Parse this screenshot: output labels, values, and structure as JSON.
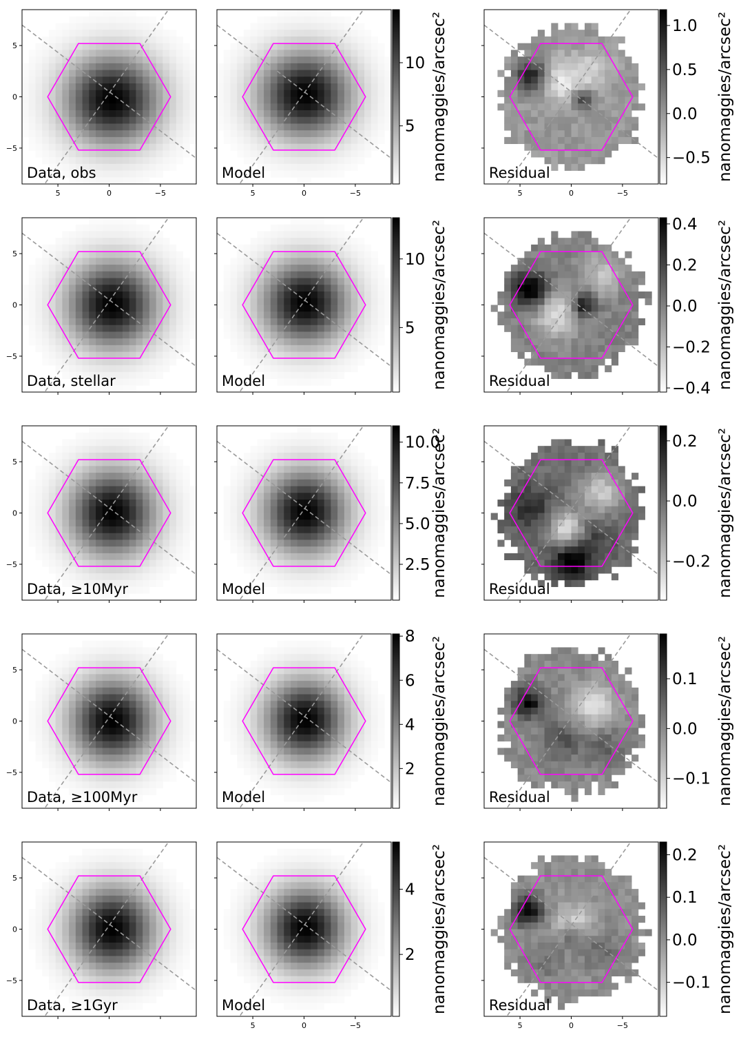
{
  "figure": {
    "grid_rows": 5,
    "grid_cols": 3,
    "colorbar_label": "nanomaggies/arcsec²",
    "panel_titles": [
      "Data, obs",
      "Model",
      "Residual",
      "Data, stellar",
      "Model",
      "Residual",
      "Data, ≥10Myr",
      "Model",
      "Residual",
      "Data, ≥100Myr",
      "Model",
      "Residual",
      "Data, ≥1Gyr",
      "Model",
      "Residual"
    ],
    "colors": {
      "hexagon": "#ff00ff",
      "guide_lines": "#9a9a9a",
      "colormap": "gray_r",
      "background": "#ffffff"
    }
  },
  "chart_data": [
    {
      "type": "heatmap",
      "row": 0,
      "col": 0,
      "panel": "Data, obs",
      "xlabel": "",
      "ylabel": "",
      "xlim": [
        8.5,
        -8.5
      ],
      "ylim": [
        -8.5,
        8.5
      ],
      "x_ticks": [
        5,
        0,
        -5
      ],
      "y_ticks": [
        5,
        0,
        -5
      ],
      "x_tick_labels": [
        "5",
        "0",
        "−5"
      ],
      "y_tick_labels": [
        "5",
        "0",
        "−5"
      ],
      "show_xticklabels": true,
      "show_yticklabels": true,
      "overlays": [
        "hexagonal IFU footprint",
        "two dashed diagonal guide lines"
      ],
      "image": {
        "peak": [
          -0.3,
          -0.3
        ],
        "sigma": [
          3.2,
          3.0
        ],
        "amp": 14.5,
        "residual": false,
        "clip_radius": null
      }
    },
    {
      "type": "heatmap",
      "row": 0,
      "col": 1,
      "panel": "Model",
      "xlabel": "",
      "ylabel": "",
      "xlim": [
        8.5,
        -8.5
      ],
      "ylim": [
        -8.5,
        8.5
      ],
      "x_ticks": [
        5,
        0,
        -5
      ],
      "y_ticks": [
        5,
        0,
        -5
      ],
      "x_tick_labels": [
        "5",
        "0",
        "−5"
      ],
      "y_tick_labels": [
        "5",
        "0",
        "−5"
      ],
      "show_xticklabels": true,
      "show_yticklabels": false,
      "overlays": [
        "hexagonal IFU footprint",
        "two dashed diagonal guide lines"
      ],
      "image": {
        "peak": [
          -0.1,
          0.2
        ],
        "sigma": [
          3.1,
          2.9
        ],
        "amp": 13.5,
        "residual": false,
        "clip_radius": null
      },
      "colorbar": {
        "ticks": [
          5,
          10
        ],
        "tick_labels": [
          "5",
          "10"
        ],
        "range": [
          0.4,
          14.2
        ],
        "label": "nanomaggies/arcsec²"
      }
    },
    {
      "type": "heatmap",
      "row": 0,
      "col": 2,
      "panel": "Residual",
      "xlabel": "",
      "ylabel": "",
      "xlim": [
        8.5,
        -8.5
      ],
      "ylim": [
        -8.5,
        8.5
      ],
      "x_ticks": [
        5,
        0,
        -5
      ],
      "y_ticks": [
        5,
        0,
        -5
      ],
      "x_tick_labels": [
        "5",
        "0",
        "−5"
      ],
      "y_tick_labels": [
        "5",
        "0",
        "−5"
      ],
      "show_xticklabels": true,
      "show_yticklabels": false,
      "overlays": [
        "hexagonal IFU footprint",
        "two dashed diagonal guide lines"
      ],
      "image": {
        "residual": true,
        "seed": 11,
        "vmin": -0.8,
        "vmax": 1.18,
        "clip_radius": 7.0,
        "blobs": [
          [
            3.8,
            2.0,
            1.0,
            1.1
          ],
          [
            -1.1,
            -0.2,
            0.8,
            0.7
          ],
          [
            1.0,
            1.5,
            -0.6,
            1.5
          ],
          [
            -2.0,
            2.5,
            -0.4,
            1.4
          ]
        ]
      },
      "colorbar": {
        "ticks": [
          -0.5,
          0.0,
          0.5,
          1.0
        ],
        "tick_labels": [
          "−0.5",
          "0.0",
          "0.5",
          "1.0"
        ],
        "range": [
          -0.8,
          1.18
        ],
        "label": "nanomaggies/arcsec²"
      }
    },
    {
      "type": "heatmap",
      "row": 1,
      "col": 0,
      "panel": "Data, stellar",
      "xlabel": "",
      "ylabel": "",
      "xlim": [
        8.5,
        -8.5
      ],
      "ylim": [
        -8.5,
        8.5
      ],
      "x_ticks": [
        5,
        0,
        -5
      ],
      "y_ticks": [
        5,
        0,
        -5
      ],
      "x_tick_labels": [
        "5",
        "0",
        "−5"
      ],
      "y_tick_labels": [
        "5",
        "0",
        "−5"
      ],
      "show_xticklabels": false,
      "show_yticklabels": true,
      "overlays": [
        "hexagonal IFU footprint",
        "two dashed diagonal guide lines"
      ],
      "image": {
        "peak": [
          -0.3,
          0.0
        ],
        "sigma": [
          3.0,
          2.9
        ],
        "amp": 13.0,
        "residual": false,
        "clip_radius": null
      }
    },
    {
      "type": "heatmap",
      "row": 1,
      "col": 1,
      "panel": "Model",
      "xlabel": "",
      "ylabel": "",
      "xlim": [
        8.5,
        -8.5
      ],
      "ylim": [
        -8.5,
        8.5
      ],
      "x_ticks": [
        5,
        0,
        -5
      ],
      "y_ticks": [
        5,
        0,
        -5
      ],
      "x_tick_labels": [
        "5",
        "0",
        "−5"
      ],
      "y_tick_labels": [
        "5",
        "0",
        "−5"
      ],
      "show_xticklabels": false,
      "show_yticklabels": false,
      "overlays": [
        "hexagonal IFU footprint",
        "two dashed diagonal guide lines"
      ],
      "image": {
        "peak": [
          -0.1,
          0.2
        ],
        "sigma": [
          2.9,
          2.8
        ],
        "amp": 12.8,
        "residual": false,
        "clip_radius": null
      },
      "colorbar": {
        "ticks": [
          5,
          10
        ],
        "tick_labels": [
          "5",
          "10"
        ],
        "range": [
          0.3,
          13.0
        ],
        "label": "nanomaggies/arcsec²"
      }
    },
    {
      "type": "heatmap",
      "row": 1,
      "col": 2,
      "panel": "Residual",
      "xlabel": "",
      "ylabel": "",
      "xlim": [
        8.5,
        -8.5
      ],
      "ylim": [
        -8.5,
        8.5
      ],
      "x_ticks": [
        5,
        0,
        -5
      ],
      "y_ticks": [
        5,
        0,
        -5
      ],
      "x_tick_labels": [
        "5",
        "0",
        "−5"
      ],
      "y_tick_labels": [
        "5",
        "0",
        "−5"
      ],
      "show_xticklabels": false,
      "show_yticklabels": false,
      "overlays": [
        "hexagonal IFU footprint",
        "two dashed diagonal guide lines"
      ],
      "image": {
        "residual": true,
        "seed": 23,
        "vmin": -0.42,
        "vmax": 0.43,
        "clip_radius": 7.0,
        "blobs": [
          [
            4.0,
            1.5,
            0.5,
            1.2
          ],
          [
            -1.2,
            0.0,
            0.4,
            0.8
          ],
          [
            1.5,
            -1.0,
            -0.3,
            1.5
          ],
          [
            -3.0,
            3.0,
            -0.2,
            1.5
          ]
        ]
      },
      "colorbar": {
        "ticks": [
          -0.4,
          -0.2,
          0.0,
          0.2,
          0.4
        ],
        "tick_labels": [
          "−0.4",
          "−0.2",
          "0.0",
          "0.2",
          "0.4"
        ],
        "range": [
          -0.42,
          0.43
        ],
        "label": "nanomaggies/arcsec²"
      }
    },
    {
      "type": "heatmap",
      "row": 2,
      "col": 0,
      "panel": "Data, ≥10Myr",
      "xlabel": "",
      "ylabel": "",
      "xlim": [
        8.5,
        -8.5
      ],
      "ylim": [
        -8.5,
        8.5
      ],
      "x_ticks": [
        5,
        0,
        -5
      ],
      "y_ticks": [
        5,
        0,
        -5
      ],
      "x_tick_labels": [
        "5",
        "0",
        "−5"
      ],
      "y_tick_labels": [
        "5",
        "0",
        "−5"
      ],
      "show_xticklabels": false,
      "show_yticklabels": true,
      "overlays": [
        "hexagonal IFU footprint",
        "two dashed diagonal guide lines"
      ],
      "image": {
        "peak": [
          -0.3,
          0.0
        ],
        "sigma": [
          2.9,
          2.9
        ],
        "amp": 11.0,
        "residual": false,
        "clip_radius": null
      }
    },
    {
      "type": "heatmap",
      "row": 2,
      "col": 1,
      "panel": "Model",
      "xlabel": "",
      "ylabel": "",
      "xlim": [
        8.5,
        -8.5
      ],
      "ylim": [
        -8.5,
        8.5
      ],
      "x_ticks": [
        5,
        0,
        -5
      ],
      "y_ticks": [
        5,
        0,
        -5
      ],
      "x_tick_labels": [
        "5",
        "0",
        "−5"
      ],
      "y_tick_labels": [
        "5",
        "0",
        "−5"
      ],
      "show_xticklabels": false,
      "show_yticklabels": false,
      "overlays": [
        "hexagonal IFU footprint",
        "two dashed diagonal guide lines"
      ],
      "image": {
        "peak": [
          -0.1,
          0.1
        ],
        "sigma": [
          2.8,
          2.8
        ],
        "amp": 10.8,
        "residual": false,
        "clip_radius": null
      },
      "colorbar": {
        "ticks": [
          2.5,
          5.0,
          7.5,
          10.0
        ],
        "tick_labels": [
          "2.5",
          "5.0",
          "7.5",
          "10.0"
        ],
        "range": [
          0.3,
          11.0
        ],
        "label": "nanomaggies/arcsec²"
      }
    },
    {
      "type": "heatmap",
      "row": 2,
      "col": 2,
      "panel": "Residual",
      "xlabel": "",
      "ylabel": "",
      "xlim": [
        8.5,
        -8.5
      ],
      "ylim": [
        -8.5,
        8.5
      ],
      "x_ticks": [
        5,
        0,
        -5
      ],
      "y_ticks": [
        5,
        0,
        -5
      ],
      "x_tick_labels": [
        "5",
        "0",
        "−5"
      ],
      "y_tick_labels": [
        "5",
        "0",
        "−5"
      ],
      "show_xticklabels": false,
      "show_yticklabels": false,
      "overlays": [
        "hexagonal IFU footprint",
        "two dashed diagonal guide lines"
      ],
      "image": {
        "residual": true,
        "seed": 37,
        "vmin": -0.33,
        "vmax": 0.25,
        "clip_radius": 7.0,
        "blobs": [
          [
            0.0,
            -4.8,
            0.3,
            1.2
          ],
          [
            4.0,
            0.5,
            0.15,
            1.5
          ],
          [
            -3.0,
            2.0,
            -0.2,
            1.5
          ],
          [
            0.5,
            -1.5,
            -0.25,
            1.2
          ],
          [
            -2.5,
            -2.5,
            0.1,
            1.3
          ]
        ]
      },
      "colorbar": {
        "ticks": [
          -0.2,
          0.0,
          0.2
        ],
        "tick_labels": [
          "−0.2",
          "0.0",
          "0.2"
        ],
        "range": [
          -0.33,
          0.25
        ],
        "label": "nanomaggies/arcsec²"
      }
    },
    {
      "type": "heatmap",
      "row": 3,
      "col": 0,
      "panel": "Data, ≥100Myr",
      "xlabel": "",
      "ylabel": "",
      "xlim": [
        8.5,
        -8.5
      ],
      "ylim": [
        -8.5,
        8.5
      ],
      "x_ticks": [
        5,
        0,
        -5
      ],
      "y_ticks": [
        5,
        0,
        -5
      ],
      "x_tick_labels": [
        "5",
        "0",
        "−5"
      ],
      "y_tick_labels": [
        "5",
        "0",
        "−5"
      ],
      "show_xticklabels": false,
      "show_yticklabels": true,
      "overlays": [
        "hexagonal IFU footprint",
        "two dashed diagonal guide lines"
      ],
      "image": {
        "peak": [
          -0.3,
          0.0
        ],
        "sigma": [
          2.8,
          2.8
        ],
        "amp": 8.1,
        "residual": false,
        "clip_radius": null
      }
    },
    {
      "type": "heatmap",
      "row": 3,
      "col": 1,
      "panel": "Model",
      "xlabel": "",
      "ylabel": "",
      "xlim": [
        8.5,
        -8.5
      ],
      "ylim": [
        -8.5,
        8.5
      ],
      "x_ticks": [
        5,
        0,
        -5
      ],
      "y_ticks": [
        5,
        0,
        -5
      ],
      "x_tick_labels": [
        "5",
        "0",
        "−5"
      ],
      "y_tick_labels": [
        "5",
        "0",
        "−5"
      ],
      "show_xticklabels": false,
      "show_yticklabels": false,
      "overlays": [
        "hexagonal IFU footprint",
        "two dashed diagonal guide lines"
      ],
      "image": {
        "peak": [
          -0.1,
          0.1
        ],
        "sigma": [
          2.7,
          2.7
        ],
        "amp": 8.0,
        "residual": false,
        "clip_radius": null
      },
      "colorbar": {
        "ticks": [
          2,
          4,
          6,
          8
        ],
        "tick_labels": [
          "2",
          "4",
          "6",
          "8"
        ],
        "range": [
          0.2,
          8.1
        ],
        "label": "nanomaggies/arcsec²"
      }
    },
    {
      "type": "heatmap",
      "row": 3,
      "col": 2,
      "panel": "Residual",
      "xlabel": "",
      "ylabel": "",
      "xlim": [
        8.5,
        -8.5
      ],
      "ylim": [
        -8.5,
        8.5
      ],
      "x_ticks": [
        5,
        0,
        -5
      ],
      "y_ticks": [
        5,
        0,
        -5
      ],
      "x_tick_labels": [
        "5",
        "0",
        "−5"
      ],
      "y_tick_labels": [
        "5",
        "0",
        "−5"
      ],
      "show_xticklabels": false,
      "show_yticklabels": false,
      "overlays": [
        "hexagonal IFU footprint",
        "two dashed diagonal guide lines"
      ],
      "image": {
        "residual": true,
        "seed": 53,
        "vmin": -0.16,
        "vmax": 0.19,
        "clip_radius": 7.0,
        "blobs": [
          [
            4.2,
            1.8,
            0.18,
            1.0
          ],
          [
            -2.3,
            1.5,
            -0.12,
            1.4
          ],
          [
            1.0,
            -1.8,
            0.08,
            1.4
          ],
          [
            -3.5,
            -2.5,
            0.06,
            1.3
          ]
        ]
      },
      "colorbar": {
        "ticks": [
          -0.1,
          0.0,
          0.1
        ],
        "tick_labels": [
          "−0.1",
          "0.0",
          "0.1"
        ],
        "range": [
          -0.16,
          0.19
        ],
        "label": "nanomaggies/arcsec²"
      }
    },
    {
      "type": "heatmap",
      "row": 4,
      "col": 0,
      "panel": "Data, ≥1Gyr",
      "xlabel": "",
      "ylabel": "",
      "xlim": [
        8.5,
        -8.5
      ],
      "ylim": [
        -8.5,
        8.5
      ],
      "x_ticks": [
        5,
        0,
        -5
      ],
      "y_ticks": [
        5,
        0,
        -5
      ],
      "x_tick_labels": [
        "5",
        "0",
        "−5"
      ],
      "y_tick_labels": [
        "5",
        "0",
        "−5"
      ],
      "show_xticklabels": false,
      "show_yticklabels": true,
      "overlays": [
        "hexagonal IFU footprint",
        "two dashed diagonal guide lines"
      ],
      "image": {
        "peak": [
          -0.3,
          0.0
        ],
        "sigma": [
          2.8,
          2.8
        ],
        "amp": 5.4,
        "residual": false,
        "clip_radius": null
      }
    },
    {
      "type": "heatmap",
      "row": 4,
      "col": 1,
      "panel": "Model",
      "xlabel": "",
      "ylabel": "",
      "xlim": [
        8.5,
        -8.5
      ],
      "ylim": [
        -8.5,
        8.5
      ],
      "x_ticks": [
        5,
        0,
        -5
      ],
      "y_ticks": [
        5,
        0,
        -5
      ],
      "x_tick_labels": [
        "5",
        "0",
        "−5"
      ],
      "y_tick_labels": [
        "5",
        "0",
        "−5"
      ],
      "show_xticklabels": true,
      "show_yticklabels": false,
      "overlays": [
        "hexagonal IFU footprint",
        "two dashed diagonal guide lines"
      ],
      "image": {
        "peak": [
          -0.1,
          0.1
        ],
        "sigma": [
          2.7,
          2.7
        ],
        "amp": 5.3,
        "residual": false,
        "clip_radius": null
      },
      "colorbar": {
        "ticks": [
          2,
          4
        ],
        "tick_labels": [
          "2",
          "4"
        ],
        "range": [
          0.1,
          5.45
        ],
        "label": "nanomaggies/arcsec²"
      }
    },
    {
      "type": "heatmap",
      "row": 4,
      "col": 2,
      "panel": "Residual",
      "xlabel": "",
      "ylabel": "",
      "xlim": [
        8.5,
        -8.5
      ],
      "ylim": [
        -8.5,
        8.5
      ],
      "x_ticks": [
        5,
        0,
        -5
      ],
      "y_ticks": [
        5,
        0,
        -5
      ],
      "x_tick_labels": [
        "5",
        "0",
        "−5"
      ],
      "y_tick_labels": [
        "5",
        "0",
        "−5"
      ],
      "show_xticklabels": true,
      "show_yticklabels": false,
      "overlays": [
        "hexagonal IFU footprint",
        "two dashed diagonal guide lines"
      ],
      "image": {
        "residual": true,
        "seed": 71,
        "vmin": -0.18,
        "vmax": 0.23,
        "clip_radius": 7.0,
        "blobs": [
          [
            4.2,
            1.8,
            0.22,
            1.0
          ],
          [
            -0.2,
            0.5,
            -0.12,
            1.3
          ],
          [
            0.0,
            -0.5,
            0.12,
            0.8
          ],
          [
            -3.0,
            -2.0,
            0.06,
            1.4
          ],
          [
            2.5,
            -3.0,
            0.05,
            1.4
          ]
        ]
      },
      "colorbar": {
        "ticks": [
          -0.1,
          0.0,
          0.1,
          0.2
        ],
        "tick_labels": [
          "−0.1",
          "0.0",
          "0.1",
          "0.2"
        ],
        "range": [
          -0.18,
          0.23
        ],
        "label": "nanomaggies/arcsec²"
      }
    }
  ]
}
